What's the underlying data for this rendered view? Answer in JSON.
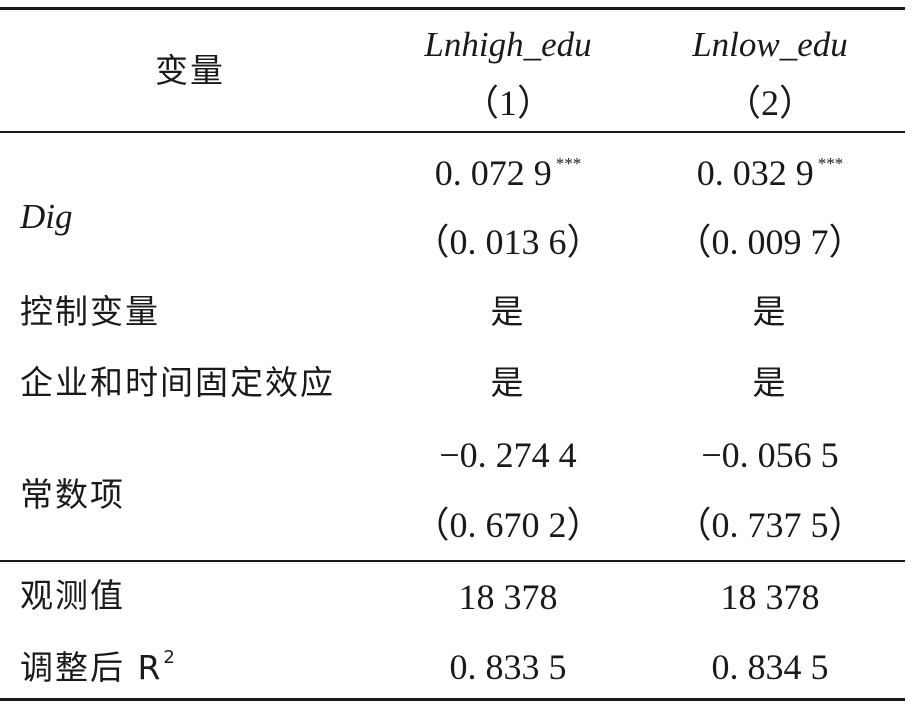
{
  "table": {
    "header": {
      "variable": "变量",
      "col1_name": "Lnhigh_edu",
      "col1_num": "（1）",
      "col2_name": "Lnlow_edu",
      "col2_num": "（2）"
    },
    "rows": [
      {
        "label": "Dig",
        "c1": "0. 072 9",
        "c1_sig": "***",
        "c1_se": "（0. 013 6）",
        "c2": "0. 032 9",
        "c2_sig": "***",
        "c2_se": "（0. 009 7）"
      },
      {
        "label": "控制变量",
        "c1": "是",
        "c2": "是"
      },
      {
        "label": "企业和时间固定效应",
        "c1": "是",
        "c2": "是"
      },
      {
        "label": "常数项",
        "c1": "−0. 274 4",
        "c1_se": "（0. 670 2）",
        "c2": "−0. 056 5",
        "c2_se": "（0. 737 5）"
      }
    ],
    "stats": [
      {
        "label": "观测值",
        "c1": "18 378",
        "c2": "18 378"
      },
      {
        "label": "调整后 R",
        "label_sup": "2",
        "c1": "0. 833 5",
        "c2": "0. 834 5"
      }
    ]
  }
}
